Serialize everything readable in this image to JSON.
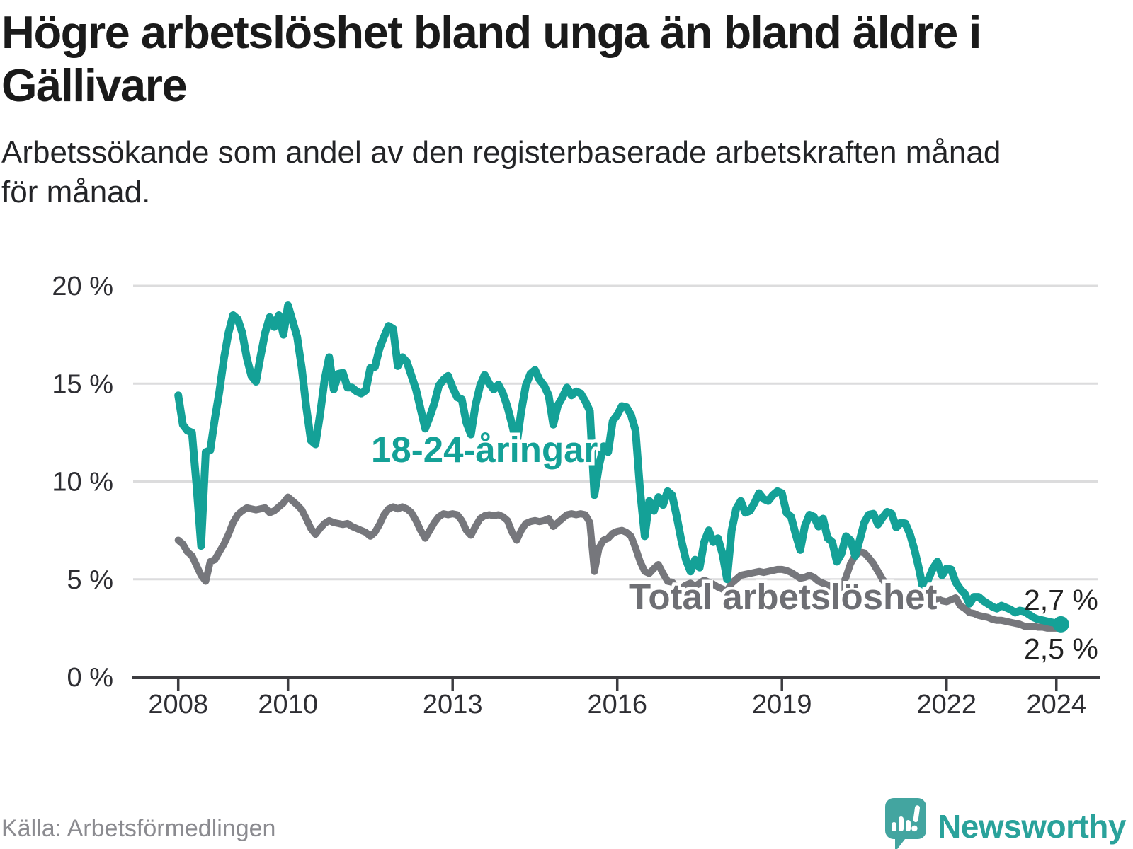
{
  "header": {
    "title": "Högre arbetslöshet bland unga än bland äldre i\nGällivare",
    "subtitle": "Arbetssökande som andel av den registerbaserade arbetskraften månad\nför månad."
  },
  "footer": {
    "source_label": "Källa: Arbetsförmedlingen",
    "brand": "Newsworthy"
  },
  "colors": {
    "youth_line": "#14a197",
    "total_line": "#76777c",
    "total_label": "#6e6f74",
    "grid": "#dcdcdd",
    "axis": "#3c3c40",
    "tick_text": "#2e2e33",
    "end_label_text": "#222222",
    "logo_teal": "#2aa29b",
    "logo_bubble": "#43a5a0"
  },
  "chart_data": {
    "type": "line",
    "title": "Högre arbetslöshet bland unga än bland äldre i Gällivare",
    "xlabel": "",
    "ylabel": "Arbetssökande som andel av den registerbaserade arbetskraften",
    "unit": "%",
    "grid": true,
    "legend_position": "inline-labels",
    "x_start": "2008-01",
    "x_end": "2024-02",
    "ylim": [
      0,
      20
    ],
    "yticks": [
      {
        "value": 0,
        "label": "0 %"
      },
      {
        "value": 5,
        "label": "5 %"
      },
      {
        "value": 10,
        "label": "10 %"
      },
      {
        "value": 15,
        "label": "15 %"
      },
      {
        "value": 20,
        "label": "20 %"
      }
    ],
    "xticks": [
      {
        "year": 2008,
        "label": "2008"
      },
      {
        "year": 2010,
        "label": "2010"
      },
      {
        "year": 2013,
        "label": "2013"
      },
      {
        "year": 2016,
        "label": "2016"
      },
      {
        "year": 2019,
        "label": "2019"
      },
      {
        "year": 2022,
        "label": "2022"
      },
      {
        "year": 2024,
        "label": "2024"
      }
    ],
    "series": [
      {
        "name": "18-24-åringar",
        "color": "#14a197",
        "end_label": "2,7 %",
        "end_value": 2.7,
        "end_dot": true,
        "values": [
          14.4,
          12.9,
          12.6,
          12.5,
          9.8,
          6.7,
          11.5,
          11.6,
          13.2,
          14.6,
          16.3,
          17.6,
          18.5,
          18.3,
          17.6,
          16.3,
          15.4,
          15.1,
          16.4,
          17.6,
          18.4,
          17.9,
          18.5,
          17.5,
          19.0,
          18.2,
          17.4,
          15.8,
          13.8,
          12.1,
          11.9,
          13.4,
          15.2,
          16.35,
          14.7,
          15.5,
          15.55,
          14.8,
          14.8,
          14.6,
          14.5,
          14.65,
          15.8,
          15.85,
          16.8,
          17.4,
          17.95,
          17.8,
          15.9,
          16.35,
          16.1,
          15.4,
          14.7,
          13.7,
          12.7,
          13.3,
          14.0,
          14.9,
          15.2,
          15.4,
          14.8,
          14.3,
          14.2,
          13.0,
          12.4,
          13.9,
          14.9,
          15.45,
          15.0,
          14.7,
          14.95,
          14.5,
          13.8,
          12.9,
          11.9,
          13.6,
          14.9,
          15.5,
          15.7,
          15.2,
          14.9,
          14.4,
          12.9,
          13.9,
          14.3,
          14.8,
          14.4,
          14.6,
          14.5,
          14.1,
          13.6,
          9.3,
          10.8,
          11.8,
          11.5,
          13.1,
          13.4,
          13.85,
          13.8,
          13.4,
          12.6,
          9.5,
          7.2,
          9.0,
          8.5,
          9.2,
          8.8,
          9.5,
          9.3,
          8.2,
          7.0,
          6.0,
          5.4,
          6.0,
          5.6,
          6.9,
          7.5,
          6.9,
          7.1,
          6.3,
          5.0,
          7.5,
          8.6,
          9.0,
          8.4,
          8.5,
          8.9,
          9.4,
          9.1,
          9.0,
          9.3,
          9.5,
          9.4,
          8.4,
          8.2,
          7.3,
          6.5,
          7.7,
          8.3,
          8.2,
          7.7,
          8.1,
          7.1,
          6.9,
          5.9,
          6.3,
          7.2,
          7.0,
          6.2,
          7.0,
          7.9,
          8.3,
          8.35,
          7.8,
          8.15,
          8.45,
          8.35,
          7.65,
          7.9,
          7.85,
          7.3,
          6.5,
          5.5,
          4.35,
          5.0,
          5.55,
          5.9,
          5.2,
          5.55,
          5.5,
          4.85,
          4.5,
          4.25,
          3.75,
          4.1,
          4.1,
          3.9,
          3.75,
          3.6,
          3.5,
          3.65,
          3.55,
          3.45,
          3.3,
          3.4,
          3.35,
          3.2,
          3.05,
          2.95,
          2.9,
          2.85,
          2.8,
          2.75,
          2.7
        ]
      },
      {
        "name": "Total arbetslöshet",
        "color": "#76777c",
        "end_label": "2,5 %",
        "end_value": 2.5,
        "end_dot": false,
        "values": [
          7.0,
          6.8,
          6.4,
          6.2,
          5.7,
          5.2,
          4.9,
          5.9,
          6.0,
          6.4,
          6.8,
          7.3,
          7.9,
          8.3,
          8.5,
          8.65,
          8.6,
          8.55,
          8.6,
          8.65,
          8.4,
          8.5,
          8.7,
          8.9,
          9.2,
          9.0,
          8.8,
          8.55,
          8.1,
          7.6,
          7.3,
          7.6,
          7.85,
          8.0,
          7.9,
          7.85,
          7.8,
          7.85,
          7.7,
          7.6,
          7.5,
          7.4,
          7.2,
          7.4,
          7.8,
          8.3,
          8.6,
          8.7,
          8.6,
          8.7,
          8.6,
          8.4,
          8.0,
          7.5,
          7.1,
          7.5,
          7.9,
          8.2,
          8.35,
          8.3,
          8.35,
          8.3,
          8.0,
          7.5,
          7.25,
          7.7,
          8.1,
          8.25,
          8.3,
          8.25,
          8.3,
          8.2,
          8.0,
          7.4,
          7.0,
          7.5,
          7.85,
          7.95,
          8.0,
          7.95,
          8.0,
          8.1,
          7.7,
          7.9,
          8.1,
          8.3,
          8.35,
          8.3,
          8.35,
          8.3,
          7.9,
          5.4,
          6.6,
          7.0,
          7.1,
          7.35,
          7.45,
          7.5,
          7.4,
          7.2,
          6.6,
          5.9,
          5.4,
          5.3,
          5.55,
          5.75,
          5.3,
          4.9,
          4.85,
          4.6,
          4.55,
          4.7,
          4.8,
          4.65,
          4.8,
          4.95,
          4.85,
          4.75,
          4.6,
          4.5,
          4.4,
          4.8,
          5.0,
          5.2,
          5.25,
          5.3,
          5.35,
          5.4,
          5.35,
          5.4,
          5.45,
          5.5,
          5.5,
          5.45,
          5.35,
          5.2,
          5.05,
          5.1,
          5.2,
          5.1,
          4.9,
          4.8,
          4.7,
          4.5,
          4.45,
          4.6,
          5.1,
          5.8,
          6.2,
          6.4,
          6.35,
          6.1,
          5.8,
          5.4,
          5.0,
          4.7,
          4.5,
          4.3,
          4.15,
          3.95,
          3.95,
          4.05,
          4.1,
          4.1,
          3.9,
          3.95,
          4.0,
          3.9,
          3.85,
          3.95,
          4.05,
          3.65,
          3.5,
          3.3,
          3.25,
          3.15,
          3.1,
          3.05,
          2.95,
          2.9,
          2.9,
          2.85,
          2.8,
          2.75,
          2.7,
          2.6,
          2.6,
          2.6,
          2.55,
          2.55,
          2.5,
          2.5,
          2.5,
          2.5
        ]
      }
    ]
  }
}
